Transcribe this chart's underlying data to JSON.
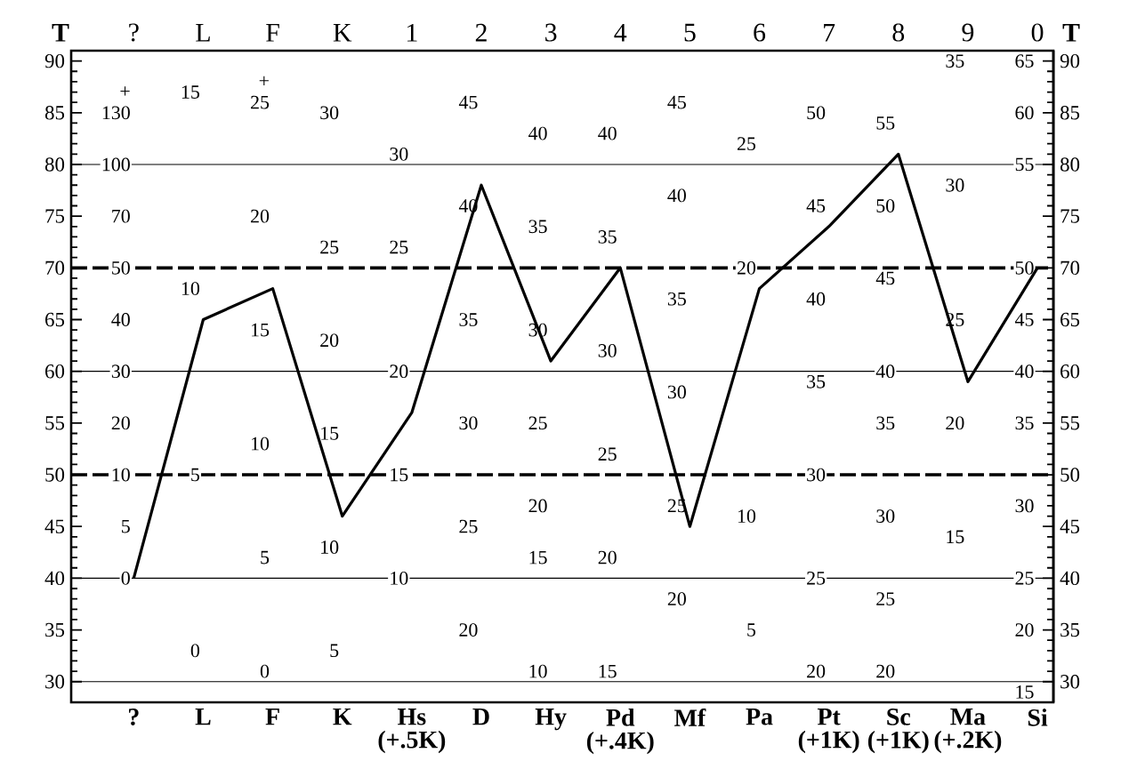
{
  "chart_data": {
    "type": "line",
    "ylabel": "T",
    "y2label": "T",
    "categories": [
      "?",
      "L",
      "F",
      "K",
      "Hs (+.5K)",
      "D",
      "Hy",
      "Pd (+.4K)",
      "Mf",
      "Pa",
      "Pt (+1K)",
      "Sc (+1K)",
      "Ma (+.2K)",
      "Si"
    ],
    "values": [
      40,
      65,
      68,
      46,
      56,
      78,
      61,
      70,
      45,
      68,
      74,
      81,
      59,
      70
    ],
    "color": "#000000",
    "ylim": [
      28,
      91
    ],
    "yticks": [
      30,
      35,
      40,
      45,
      50,
      55,
      60,
      65,
      70,
      75,
      80,
      85,
      90
    ],
    "y2lim": [
      28,
      91
    ],
    "y2ticks": [
      30,
      35,
      40,
      45,
      50,
      55,
      60,
      65,
      70,
      75,
      80,
      85,
      90
    ],
    "ref_lines": [
      {
        "axis": "y",
        "value": 30,
        "line_style": "solid"
      },
      {
        "axis": "y",
        "value": 40,
        "line_style": "solid"
      },
      {
        "axis": "y",
        "value": 50,
        "line_style": "dashed"
      },
      {
        "axis": "y",
        "value": 60,
        "line_style": "solid"
      },
      {
        "axis": "y",
        "value": 70,
        "line_style": "dashed"
      },
      {
        "axis": "y",
        "value": 80,
        "line_style": "solid"
      }
    ],
    "annotations": [
      "?",
      "L",
      "F",
      "K",
      "1",
      "2",
      "3",
      "4",
      "5",
      "6",
      "7",
      "8",
      "9",
      "0",
      "+",
      "130",
      "100",
      "70",
      "50",
      "40",
      "30",
      "20",
      "10",
      "5",
      "0",
      "15",
      "10",
      "5",
      "0",
      "+",
      "25",
      "20",
      "15",
      "10",
      "5",
      "0",
      "30",
      "25",
      "20",
      "15",
      "10",
      "5",
      "30",
      "25",
      "20",
      "15",
      "10",
      "45",
      "40",
      "35",
      "30",
      "25",
      "20",
      "40",
      "35",
      "30",
      "25",
      "20",
      "15",
      "10",
      "40",
      "35",
      "30",
      "25",
      "20",
      "15",
      "45",
      "40",
      "35",
      "30",
      "25",
      "20",
      "25",
      "20",
      "10",
      "5",
      "50",
      "45",
      "40",
      "35",
      "30",
      "25",
      "20",
      "55",
      "50",
      "45",
      "40",
      "35",
      "30",
      "25",
      "20",
      "35",
      "30",
      "25",
      "20",
      "15",
      "65",
      "60",
      "55",
      "50",
      "45",
      "40",
      "35",
      "30",
      "25",
      "20",
      "15"
    ]
  }
}
